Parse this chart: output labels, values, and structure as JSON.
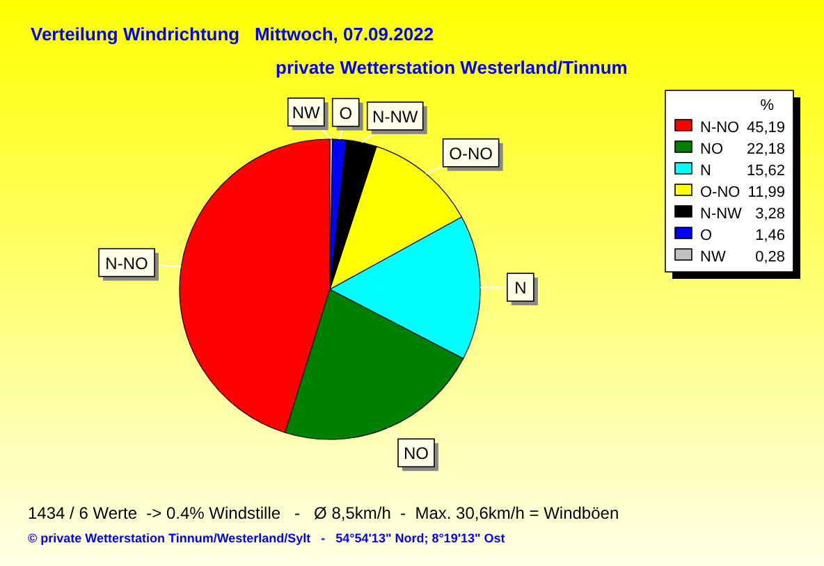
{
  "chart_data": {
    "type": "pie",
    "title": "Verteilung Windrichtung   Mittwoch, 07.09.2022",
    "subtitle": "private Wetterstation Westerland/Tinnum",
    "legend_title": "%",
    "categories": [
      "N-NO",
      "NO",
      "N",
      "O-NO",
      "N-NW",
      "O",
      "NW"
    ],
    "values": [
      45.19,
      22.18,
      15.62,
      11.99,
      3.28,
      1.46,
      0.28
    ],
    "value_labels": [
      "45,19",
      "22,18",
      "15,62",
      "11,99",
      "3,28",
      "1,46",
      "0,28"
    ],
    "colors": [
      "#ff0000",
      "#008000",
      "#00ffff",
      "#ffff00",
      "#000000",
      "#0000ff",
      "#c0c0c0"
    ],
    "legend": "top right",
    "annotations": [
      "1434 / 6 Werte  -> 0.4% Windstille   -   Ø 8,5km/h  -  Max. 30,6km/h = Windböen",
      "© private Wetterstation Tinnum/Westerland/Sylt   -   54°54'13\" Nord; 8°19'13\" Ost"
    ]
  }
}
